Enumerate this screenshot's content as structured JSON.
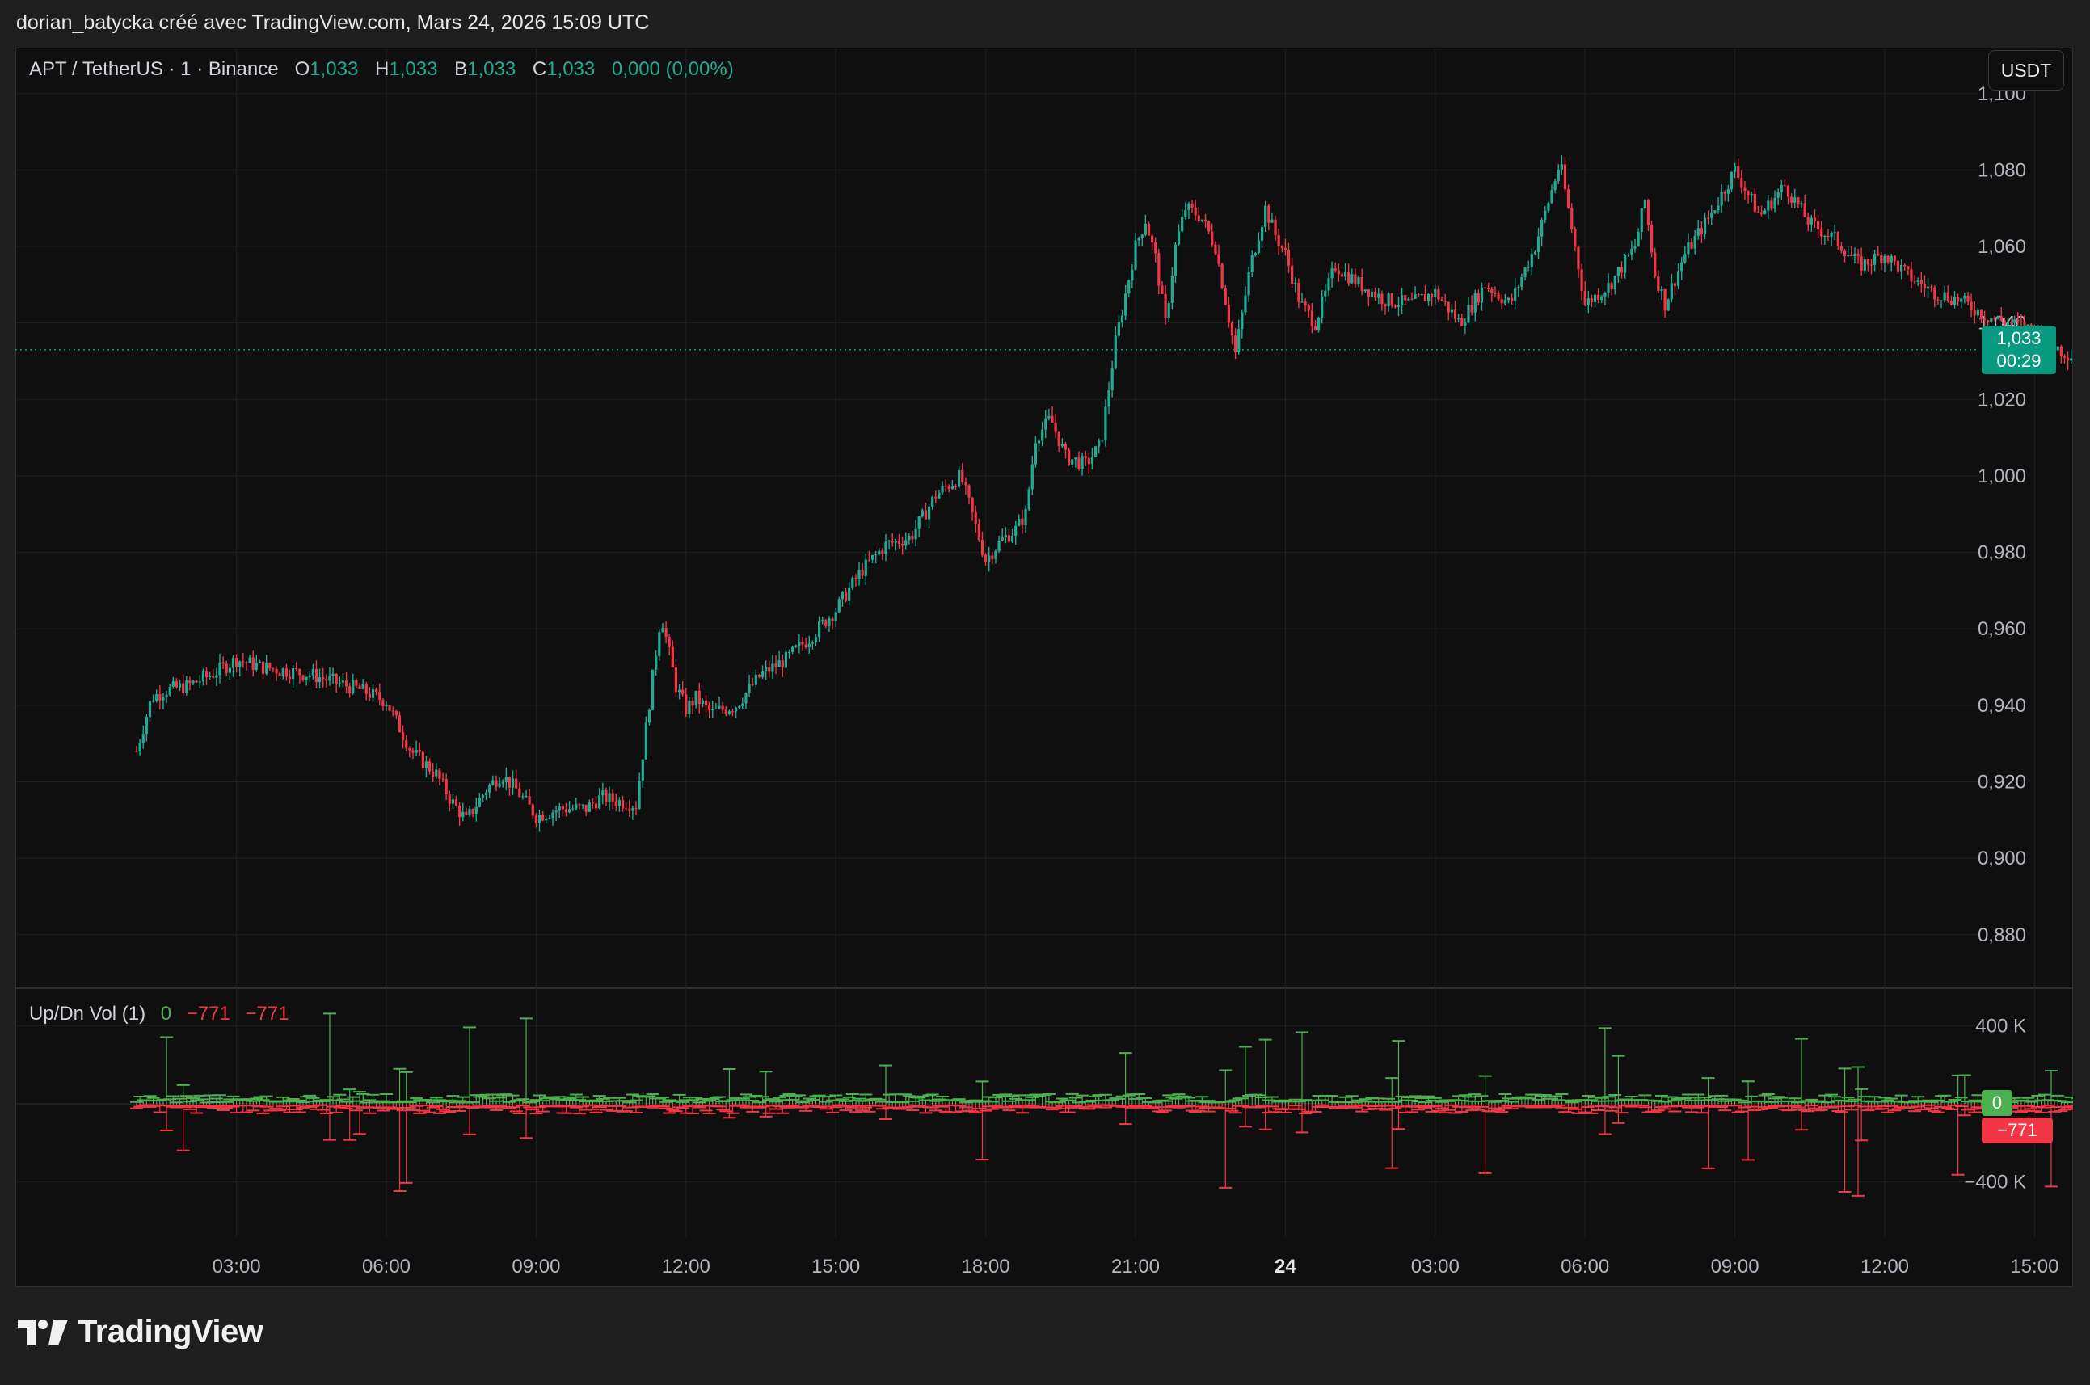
{
  "header": {
    "title": "dorian_batycka créé avec TradingView.com, Mars 24, 2026 15:09 UTC"
  },
  "legend": {
    "symbol": "APT / TetherUS · 1 · Binance",
    "o_label": "O",
    "o_value": "1,033",
    "h_label": "H",
    "h_value": "1,033",
    "b_label": "B",
    "b_value": "1,033",
    "c_label": "C",
    "c_value": "1,033",
    "change": "0,000 (0,00%)"
  },
  "currency_button": "USDT",
  "last_price": {
    "price": "1,033",
    "countdown": "00:29"
  },
  "volume_legend": {
    "name": "Up/Dn Vol (1)",
    "up": "0",
    "down": "−771",
    "delta": "−771"
  },
  "volume_tags": {
    "up": "0",
    "down": "−771"
  },
  "brand": "TradingView",
  "colors": {
    "up": "#22ab94",
    "down": "#f23645",
    "vol_up": "#4caf50",
    "vol_down": "#f23645",
    "accent": "#089981"
  },
  "chart_data": {
    "type": "candlestick",
    "x_tick_labels": [
      "03:00",
      "06:00",
      "09:00",
      "12:00",
      "15:00",
      "18:00",
      "21:00",
      "24",
      "03:00",
      "06:00",
      "09:00",
      "12:00",
      "15:00"
    ],
    "y_tick_labels": [
      "1,100",
      "1,080",
      "1,060",
      "1,040",
      "1,020",
      "1,000",
      "0,980",
      "0,960",
      "0,940",
      "0,920",
      "0,900",
      "0,880"
    ],
    "ylim": [
      0.866,
      1.112
    ],
    "last_price": 1.033,
    "price_path": {
      "t_hours": [
        0.0,
        0.3,
        0.6,
        1.0,
        1.5,
        2.0,
        2.5,
        3.0,
        3.5,
        4.0,
        4.5,
        5.0,
        5.5,
        6.0,
        6.3,
        6.6,
        7.0,
        7.3,
        7.6,
        8.0,
        8.5,
        9.0,
        9.3,
        9.6,
        10.0,
        10.5,
        10.8,
        11.0,
        11.2,
        11.5,
        12.0,
        12.5,
        13.0,
        13.5,
        14.0,
        14.5,
        15.0,
        15.5,
        16.0,
        16.5,
        17.0,
        17.3,
        17.6,
        17.8,
        18.0,
        18.3,
        18.6,
        19.0,
        19.3,
        19.6,
        20.0,
        20.2,
        20.4,
        20.6,
        20.8,
        21.0,
        21.3,
        21.6,
        22.0,
        22.3,
        22.6,
        22.8,
        23.0,
        23.3,
        23.6,
        24.0,
        24.5,
        25.0,
        25.5,
        26.0,
        26.5,
        27.0,
        27.5,
        28.0,
        28.5,
        29.0,
        29.5,
        30.0,
        30.2,
        30.4,
        30.6,
        31.0,
        31.5,
        32.0,
        32.5,
        33.0,
        33.5,
        34.0,
        34.5,
        35.0,
        35.5,
        36.0,
        36.5,
        37.0,
        37.5,
        38.0,
        38.5,
        39.0,
        39.3
      ],
      "price": [
        0.928,
        0.942,
        0.944,
        0.945,
        0.948,
        0.952,
        0.95,
        0.949,
        0.948,
        0.946,
        0.944,
        0.941,
        0.928,
        0.922,
        0.915,
        0.91,
        0.918,
        0.922,
        0.918,
        0.911,
        0.913,
        0.913,
        0.916,
        0.915,
        0.914,
        0.964,
        0.945,
        0.939,
        0.942,
        0.938,
        0.94,
        0.948,
        0.952,
        0.958,
        0.965,
        0.975,
        0.982,
        0.984,
        0.995,
        1.0,
        0.978,
        0.983,
        0.986,
        0.99,
        1.01,
        1.015,
        1.005,
        1.003,
        1.008,
        1.035,
        1.06,
        1.067,
        1.057,
        1.04,
        1.06,
        1.07,
        1.068,
        1.06,
        1.032,
        1.055,
        1.07,
        1.063,
        1.058,
        1.045,
        1.04,
        1.055,
        1.05,
        1.046,
        1.045,
        1.048,
        1.04,
        1.05,
        1.045,
        1.06,
        1.082,
        1.045,
        1.05,
        1.06,
        1.072,
        1.053,
        1.045,
        1.058,
        1.068,
        1.08,
        1.068,
        1.076,
        1.066,
        1.062,
        1.055,
        1.058,
        1.052,
        1.048,
        1.046,
        1.042,
        1.04,
        1.038,
        1.033,
        1.03,
        1.033
      ]
    },
    "volume_pane": {
      "series": [
        {
          "name": "Up",
          "color": "#4caf50"
        },
        {
          "name": "Down",
          "color": "#f23645"
        }
      ],
      "y_tick_labels": [
        "400 K",
        "−400 K"
      ],
      "ylim": [
        -560000,
        560000
      ]
    }
  }
}
